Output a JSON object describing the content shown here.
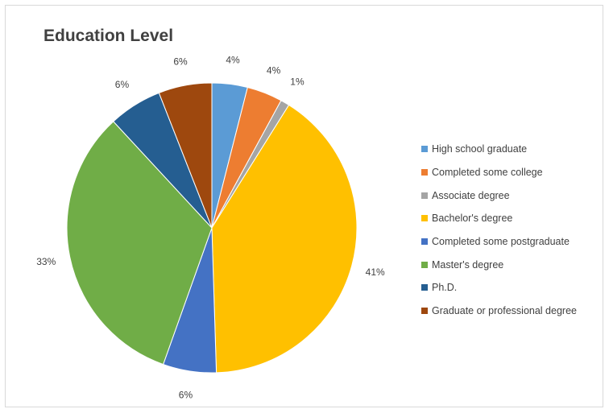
{
  "chart_data": {
    "type": "pie",
    "title": "Education Level",
    "legend_position": "right",
    "categories": [
      "High school graduate",
      "Completed some college",
      "Associate degree",
      "Bachelor's degree",
      "Completed some postgraduate",
      "Master's degree",
      "Ph.D.",
      "Graduate or professional degree"
    ],
    "values": [
      4,
      4,
      1,
      41,
      6,
      33,
      6,
      6
    ],
    "labels": [
      "4%",
      "4%",
      "1%",
      "41%",
      "6%",
      "33%",
      "6%",
      "6%"
    ],
    "colors": [
      "#5b9bd5",
      "#ed7d31",
      "#a5a5a5",
      "#ffc000",
      "#4472c4",
      "#70ad47",
      "#255e91",
      "#9e480e"
    ]
  }
}
